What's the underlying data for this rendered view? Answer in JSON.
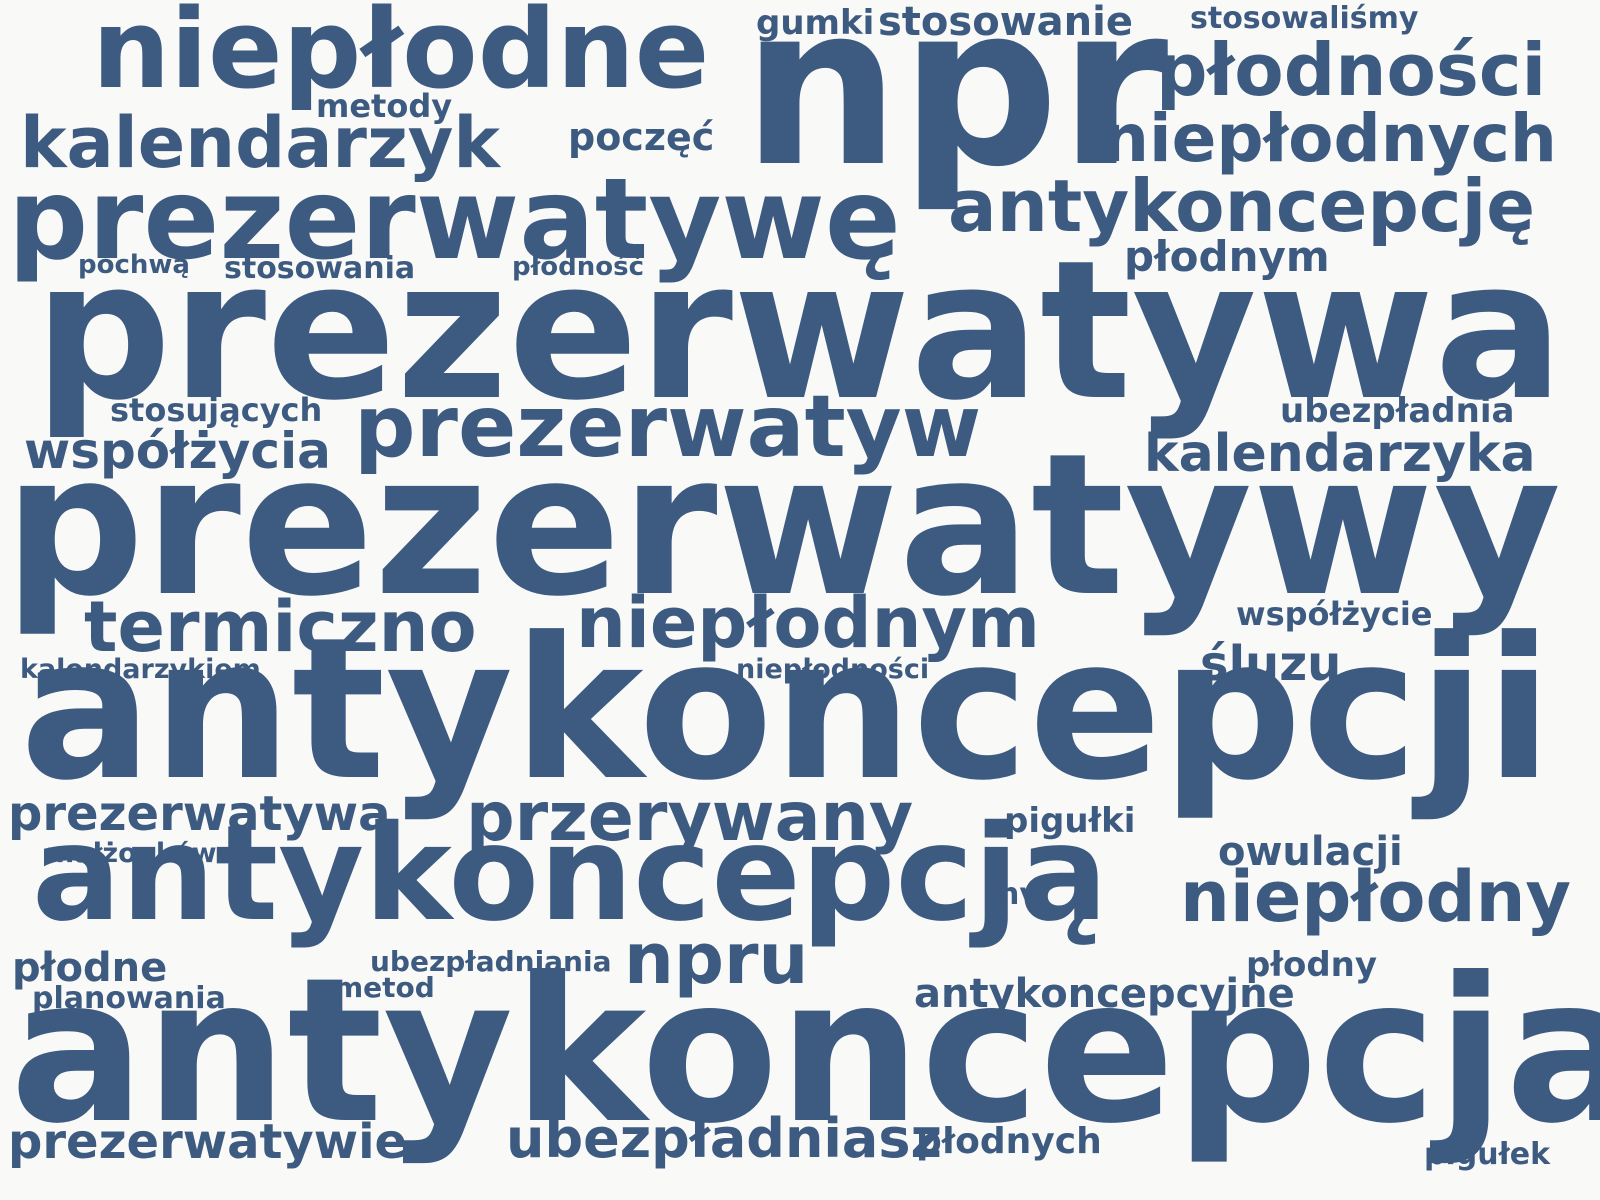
{
  "color": "#3d5a80",
  "background": "#f9f9f7",
  "words": [
    "niepłodne",
    "npr",
    "płodności",
    "gumki",
    "stosowanie",
    "stosowaliśmy",
    "metody",
    "kalendarzyk",
    "poczęć",
    "niepłodnych",
    "prezerwatywę",
    "antykoncepcję",
    "pochwą",
    "stosowania",
    "płodność",
    "płodnym",
    "prezerwatywa",
    "stosujących",
    "prezerwatyw",
    "ubezpładnia",
    "współżycia",
    "kalendarzyka",
    "prezerwatywy",
    "termiczno",
    "niepłodnym",
    "współżycie",
    "kalendarzykiem",
    "niepłodności",
    "śluzu",
    "antykoncepcji",
    "prezerwatywą",
    "przerywany",
    "pigułki",
    "małżonków",
    "owulacji",
    "antykoncepcją",
    "niepłodny",
    "hv",
    "płodne",
    "ubezpładniania",
    "npru",
    "płodny",
    "planowania",
    "metod",
    "antykoncepcyjne",
    "antykoncepcja",
    "prezerwatywie",
    "ubezpładniasz",
    "płodnych",
    "pigułek"
  ]
}
